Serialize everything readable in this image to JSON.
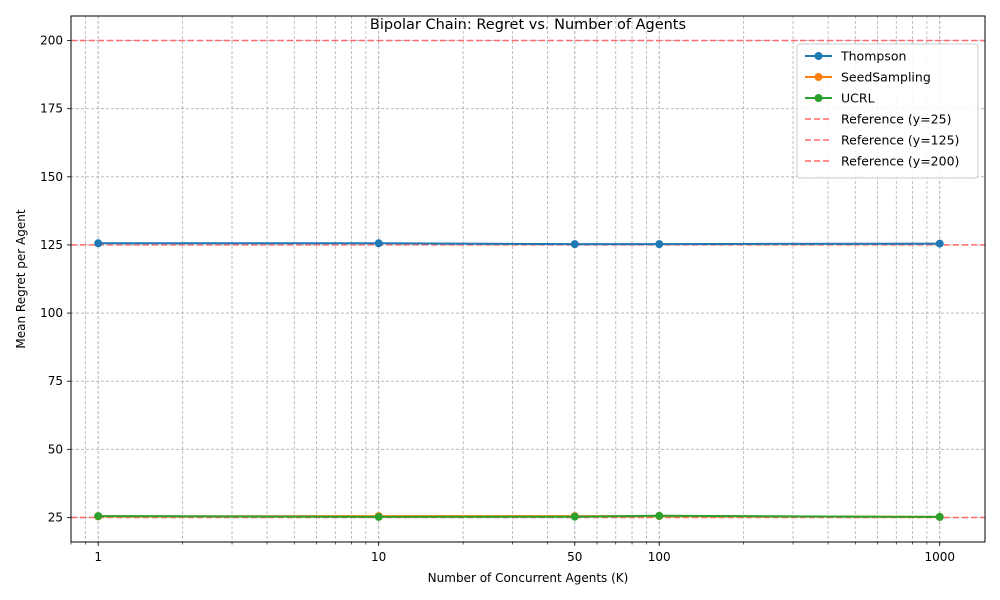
{
  "chart_data": {
    "type": "line",
    "title": "Bipolar Chain: Regret vs. Number of Agents",
    "xlabel": "Number of Concurrent Agents (K)",
    "ylabel": "Mean Regret per Agent",
    "x_scale": "log",
    "x": [
      1,
      10,
      50,
      100,
      1000
    ],
    "x_tick_labels": [
      "1",
      "10",
      "50",
      "100",
      "1000"
    ],
    "xlim": [
      0.8,
      1450
    ],
    "ylim": [
      16,
      209
    ],
    "y_ticks": [
      25,
      50,
      75,
      100,
      125,
      150,
      175,
      200
    ],
    "grid": true,
    "legend_position": "top-right",
    "series": [
      {
        "name": "Thompson",
        "color": "#1f77b4",
        "values": [
          125.6,
          125.6,
          125.3,
          125.3,
          125.5
        ]
      },
      {
        "name": "SeedSampling",
        "color": "#ff7f0e",
        "values": [
          25.4,
          25.5,
          25.5,
          25.5,
          25.2
        ]
      },
      {
        "name": "UCRL",
        "color": "#2ca02c",
        "values": [
          25.5,
          25.2,
          25.3,
          25.6,
          25.2
        ]
      }
    ],
    "reference_lines": [
      {
        "name": "Reference (y=25)",
        "y": 25,
        "color": "#ff6b6b"
      },
      {
        "name": "Reference (y=125)",
        "y": 125,
        "color": "#ff6b6b"
      },
      {
        "name": "Reference (y=200)",
        "y": 200,
        "color": "#ff6b6b"
      }
    ]
  }
}
